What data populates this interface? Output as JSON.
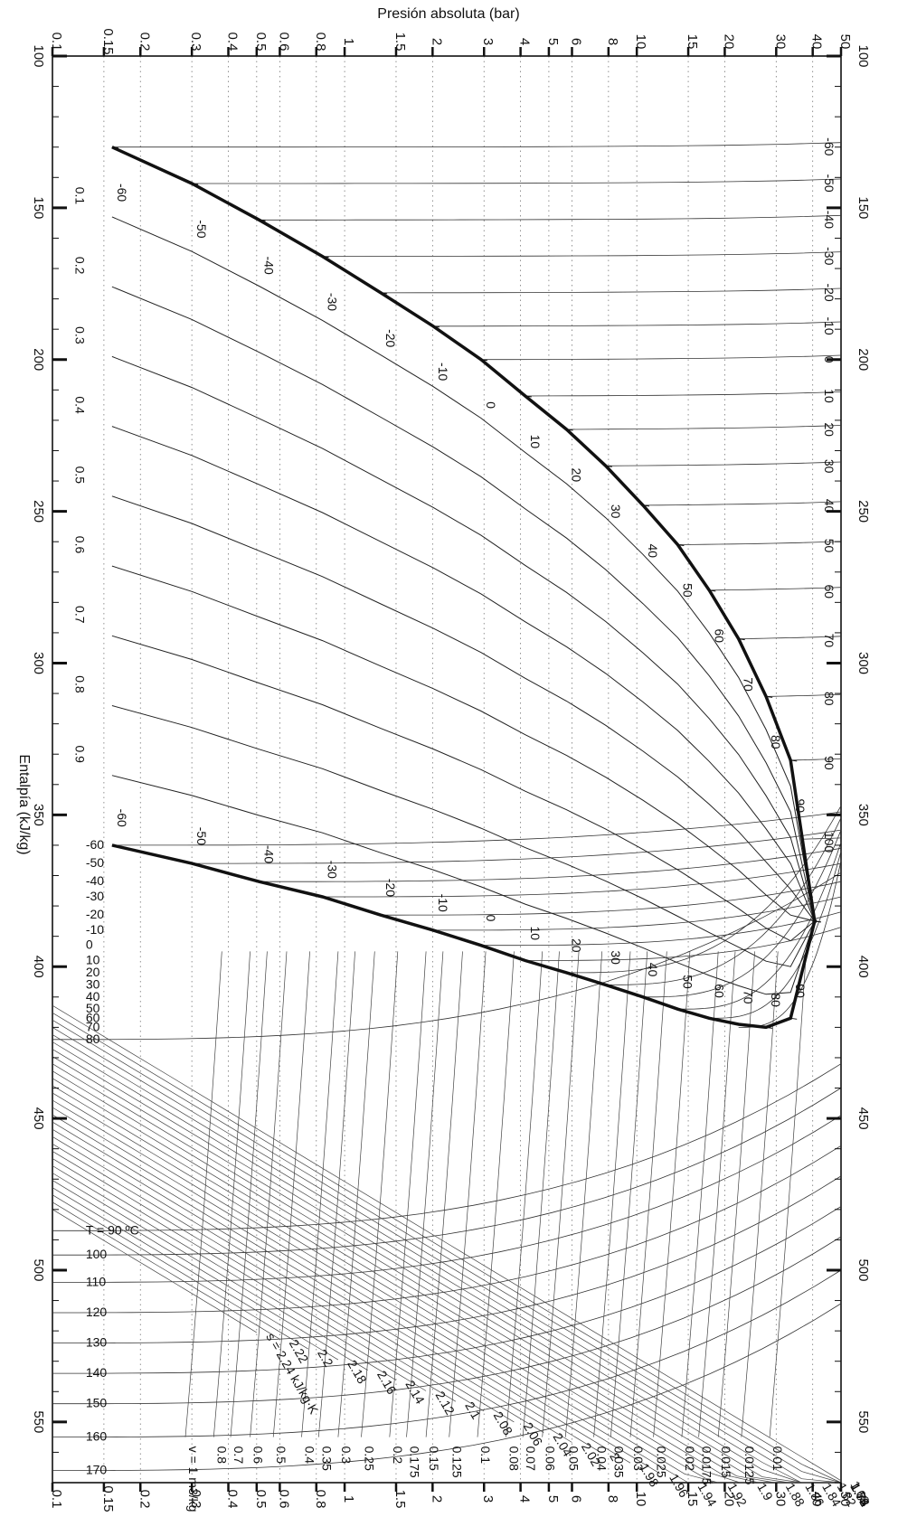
{
  "chart_data": {
    "type": "line",
    "title": "",
    "top_axis_label": "Presión absoluta (bar)",
    "left_axis_label": "Entalpía (kJ/kg)",
    "x_axis": {
      "quantity": "Presión absoluta",
      "unit": "bar",
      "scale": "log",
      "range": [
        0.1,
        50
      ],
      "ticks": [
        {
          "value": 0.1,
          "label": "0.1"
        },
        {
          "value": 0.15,
          "label": "0.15"
        },
        {
          "value": 0.2,
          "label": "0.2"
        },
        {
          "value": 0.3,
          "label": "0.3"
        },
        {
          "value": 0.4,
          "label": "0.4"
        },
        {
          "value": 0.5,
          "label": "0.5"
        },
        {
          "value": 0.6,
          "label": "0.6"
        },
        {
          "value": 0.8,
          "label": "0.8"
        },
        {
          "value": 1,
          "label": "1"
        },
        {
          "value": 1.5,
          "label": "1.5"
        },
        {
          "value": 2,
          "label": "2"
        },
        {
          "value": 3,
          "label": "3"
        },
        {
          "value": 4,
          "label": "4"
        },
        {
          "value": 5,
          "label": "5"
        },
        {
          "value": 6,
          "label": "6"
        },
        {
          "value": 8,
          "label": "8"
        },
        {
          "value": 10,
          "label": "10"
        },
        {
          "value": 15,
          "label": "15"
        },
        {
          "value": 20,
          "label": "20"
        },
        {
          "value": 30,
          "label": "30"
        },
        {
          "value": 40,
          "label": "40"
        },
        {
          "value": 50,
          "label": "50"
        }
      ]
    },
    "y_axis": {
      "quantity": "Entalpía",
      "unit": "kJ/kg",
      "scale": "linear",
      "range": [
        100,
        570
      ],
      "ticks": [
        {
          "value": 100,
          "label": "100"
        },
        {
          "value": 150,
          "label": "150"
        },
        {
          "value": 200,
          "label": "200"
        },
        {
          "value": 250,
          "label": "250"
        },
        {
          "value": 300,
          "label": "300"
        },
        {
          "value": 350,
          "label": "350"
        },
        {
          "value": 400,
          "label": "400"
        },
        {
          "value": 450,
          "label": "450"
        },
        {
          "value": 500,
          "label": "500"
        },
        {
          "value": 550,
          "label": "550"
        }
      ]
    },
    "critical_point": {
      "p": 40.6,
      "h": 385
    },
    "saturation": {
      "liquid": [
        {
          "T": -60,
          "p": 0.16,
          "h": 130
        },
        {
          "T": -50,
          "p": 0.3,
          "h": 142
        },
        {
          "T": -40,
          "p": 0.51,
          "h": 154
        },
        {
          "T": -30,
          "p": 0.84,
          "h": 166
        },
        {
          "T": -20,
          "p": 1.33,
          "h": 178
        },
        {
          "T": -10,
          "p": 2.01,
          "h": 189
        },
        {
          "T": 0,
          "p": 2.93,
          "h": 200
        },
        {
          "T": 10,
          "p": 4.15,
          "h": 212
        },
        {
          "T": 20,
          "p": 5.75,
          "h": 223
        },
        {
          "T": 30,
          "p": 7.83,
          "h": 235
        },
        {
          "T": 40,
          "p": 10.5,
          "h": 248
        },
        {
          "T": 50,
          "p": 13.8,
          "h": 261
        },
        {
          "T": 60,
          "p": 17.7,
          "h": 276
        },
        {
          "T": 70,
          "p": 22.3,
          "h": 292
        },
        {
          "T": 80,
          "p": 27.7,
          "h": 311
        },
        {
          "T": 90,
          "p": 33.6,
          "h": 332
        },
        {
          "T": 96.1,
          "p": 40.6,
          "h": 385
        }
      ],
      "vapor": [
        {
          "T": -60,
          "p": 0.16,
          "h": 360
        },
        {
          "T": -50,
          "p": 0.3,
          "h": 366
        },
        {
          "T": -40,
          "p": 0.51,
          "h": 372
        },
        {
          "T": -30,
          "p": 0.84,
          "h": 377
        },
        {
          "T": -20,
          "p": 1.33,
          "h": 383
        },
        {
          "T": -10,
          "p": 2.01,
          "h": 388
        },
        {
          "T": 0,
          "p": 2.93,
          "h": 393
        },
        {
          "T": 10,
          "p": 4.15,
          "h": 398
        },
        {
          "T": 20,
          "p": 5.75,
          "h": 402
        },
        {
          "T": 30,
          "p": 7.83,
          "h": 406
        },
        {
          "T": 40,
          "p": 10.5,
          "h": 410
        },
        {
          "T": 50,
          "p": 13.8,
          "h": 414
        },
        {
          "T": 60,
          "p": 17.7,
          "h": 417
        },
        {
          "T": 70,
          "p": 22.3,
          "h": 419
        },
        {
          "T": 80,
          "p": 27.7,
          "h": 420
        },
        {
          "T": 90,
          "p": 33.6,
          "h": 417
        },
        {
          "T": 96.1,
          "p": 40.6,
          "h": 385
        }
      ]
    },
    "quality_lines": [
      "0.1",
      "0.2",
      "0.3",
      "0.4",
      "0.5",
      "0.6",
      "0.7",
      "0.8",
      "0.9"
    ],
    "liquid_side_temperature_labels": [
      {
        "T": -60,
        "label": "-60"
      },
      {
        "T": -50,
        "label": "-50"
      },
      {
        "T": -40,
        "label": "-40"
      },
      {
        "T": -30,
        "label": "-30"
      },
      {
        "T": -20,
        "label": "-20"
      },
      {
        "T": -10,
        "label": "-10"
      },
      {
        "T": 0,
        "label": "0"
      },
      {
        "T": 10,
        "label": "10"
      },
      {
        "T": 20,
        "label": "20"
      },
      {
        "T": 30,
        "label": "30"
      },
      {
        "T": 40,
        "label": "40"
      },
      {
        "T": 50,
        "label": "50"
      },
      {
        "T": 60,
        "label": "60"
      },
      {
        "T": 70,
        "label": "70"
      },
      {
        "T": 80,
        "label": "80"
      },
      {
        "T": 90,
        "label": "90"
      }
    ],
    "vapor_side_temperature_labels": [
      {
        "T": -60,
        "label": "-60"
      },
      {
        "T": -50,
        "label": "-50"
      },
      {
        "T": -40,
        "label": "-40"
      },
      {
        "T": -30,
        "label": "-30"
      },
      {
        "T": -20,
        "label": "-20"
      },
      {
        "T": -10,
        "label": "-10"
      },
      {
        "T": 0,
        "label": "0"
      },
      {
        "T": 10,
        "label": "10"
      },
      {
        "T": 20,
        "label": "20"
      },
      {
        "T": 30,
        "label": "30"
      },
      {
        "T": 40,
        "label": "40"
      },
      {
        "T": 50,
        "label": "50"
      },
      {
        "T": 60,
        "label": "60"
      },
      {
        "T": 70,
        "label": "70"
      },
      {
        "T": 80,
        "label": "80"
      },
      {
        "T": 90,
        "label": "90"
      }
    ],
    "compressed_liquid_isotherms": [
      {
        "T": -60,
        "label": "-60",
        "h": 130
      },
      {
        "T": -50,
        "label": "-50",
        "h": 142
      },
      {
        "T": -40,
        "label": "-40",
        "h": 154
      },
      {
        "T": -30,
        "label": "-30",
        "h": 166
      },
      {
        "T": -20,
        "label": "-20",
        "h": 178
      },
      {
        "T": -10,
        "label": "-10",
        "h": 189
      },
      {
        "T": 0,
        "label": "0",
        "h": 200
      },
      {
        "T": 10,
        "label": "10",
        "h": 212
      },
      {
        "T": 20,
        "label": "20",
        "h": 223
      },
      {
        "T": 30,
        "label": "30",
        "h": 235
      },
      {
        "T": 40,
        "label": "40",
        "h": 248
      },
      {
        "T": 50,
        "label": "50",
        "h": 261
      },
      {
        "T": 60,
        "label": "60",
        "h": 276
      },
      {
        "T": 70,
        "label": "70",
        "h": 292
      },
      {
        "T": 80,
        "label": "80",
        "h": 311
      },
      {
        "T": 90,
        "label": "90",
        "h": 332
      },
      {
        "T": 100,
        "label": "100",
        "h": 358
      }
    ],
    "superheated_isotherms": [
      {
        "T": -60,
        "label": "-60",
        "h": 360
      },
      {
        "T": -50,
        "label": "-50",
        "h": 366
      },
      {
        "T": -40,
        "label": "-40",
        "h": 372
      },
      {
        "T": -30,
        "label": "-30",
        "h": 377
      },
      {
        "T": -20,
        "label": "-20",
        "h": 383
      },
      {
        "T": -10,
        "label": "-10",
        "h": 388
      },
      {
        "T": 0,
        "label": "0",
        "h": 393
      },
      {
        "T": 10,
        "label": "10",
        "h": 398
      },
      {
        "T": 20,
        "label": "20",
        "h": 402
      },
      {
        "T": 30,
        "label": "30",
        "h": 406
      },
      {
        "T": 40,
        "label": "40",
        "h": 410
      },
      {
        "T": 50,
        "label": "50",
        "h": 414
      },
      {
        "T": 60,
        "label": "60",
        "h": 417
      },
      {
        "T": 70,
        "label": "70",
        "h": 420
      },
      {
        "T": 80,
        "label": "80",
        "h": 424
      },
      {
        "T": 90,
        "label": "T = 90 ºC",
        "h": 487
      },
      {
        "T": 100,
        "label": "100",
        "h": 495
      },
      {
        "T": 110,
        "label": "110",
        "h": 504
      },
      {
        "T": 120,
        "label": "120",
        "h": 514
      },
      {
        "T": 130,
        "label": "130",
        "h": 524
      },
      {
        "T": 140,
        "label": "140",
        "h": 534
      },
      {
        "T": 150,
        "label": "150",
        "h": 544
      },
      {
        "T": 160,
        "label": "160",
        "h": 555
      },
      {
        "T": 170,
        "label": "170",
        "h": 566
      }
    ],
    "entropy_lines": {
      "unit": "kJ/kg·K",
      "labels": [
        {
          "s": 2.24,
          "label": "s = 2.24 kJ/kg·K",
          "p": 0.5
        },
        {
          "s": 2.22,
          "label": "2.22",
          "p": 0.6
        },
        {
          "s": 2.2,
          "label": "2.2",
          "p": 0.75
        },
        {
          "s": 2.18,
          "label": "2.18",
          "p": 0.95
        },
        {
          "s": 2.16,
          "label": "2.16",
          "p": 1.2
        },
        {
          "s": 2.14,
          "label": "2.14",
          "p": 1.5
        },
        {
          "s": 2.12,
          "label": "2.12",
          "p": 1.9
        },
        {
          "s": 2.1,
          "label": "2.1",
          "p": 2.4
        },
        {
          "s": 2.08,
          "label": "2.08",
          "p": 3
        },
        {
          "s": 2.06,
          "label": "2.06",
          "p": 3.8
        },
        {
          "s": 2.04,
          "label": "2.04",
          "p": 4.8
        },
        {
          "s": 2.02,
          "label": "2.02",
          "p": 6
        },
        {
          "s": 2,
          "label": "2",
          "p": 7.5
        },
        {
          "s": 1.98,
          "label": "1.98",
          "p": 9.5
        },
        {
          "s": 1.96,
          "label": "1.96",
          "p": 12
        },
        {
          "s": 1.94,
          "label": "1.94",
          "p": 15
        },
        {
          "s": 1.92,
          "label": "1.92",
          "p": 19
        },
        {
          "s": 1.9,
          "label": "1.9",
          "p": 24
        },
        {
          "s": 1.88,
          "label": "1.88",
          "p": 30
        },
        {
          "s": 1.86,
          "label": "1.86",
          "p": 35
        },
        {
          "s": 1.84,
          "label": "1.84",
          "p": 40
        },
        {
          "s": 1.82,
          "label": "1.82",
          "p": 45
        },
        {
          "s": 1.8,
          "label": "1.8",
          "p": 50
        },
        {
          "s": 1.78,
          "label": "1.78",
          "p": 50
        },
        {
          "s": 1.76,
          "label": "1.76",
          "p": 50
        },
        {
          "s": 1.74,
          "label": "1.74",
          "p": 50
        },
        {
          "s": 1.72,
          "label": "1.72",
          "p": 50
        },
        {
          "s": 1.7,
          "label": "1.7",
          "p": 50
        },
        {
          "s": 1.68,
          "label": "1.68",
          "p": 50
        }
      ]
    },
    "specific_volume_lines": {
      "unit": "m3/kg",
      "labels": [
        {
          "v": 1,
          "label": "v = 1 m3/kg"
        },
        {
          "v": 0.8,
          "label": "0.8"
        },
        {
          "v": 0.7,
          "label": "0.7"
        },
        {
          "v": 0.6,
          "label": "0.6"
        },
        {
          "v": 0.5,
          "label": "0.5"
        },
        {
          "v": 0.4,
          "label": "0.4"
        },
        {
          "v": 0.35,
          "label": "0.35"
        },
        {
          "v": 0.3,
          "label": "0.3"
        },
        {
          "v": 0.25,
          "label": "0.25"
        },
        {
          "v": 0.2,
          "label": "0.2"
        },
        {
          "v": 0.175,
          "label": "0.175"
        },
        {
          "v": 0.15,
          "label": "0.15"
        },
        {
          "v": 0.125,
          "label": "0.125"
        },
        {
          "v": 0.1,
          "label": "0.1"
        },
        {
          "v": 0.08,
          "label": "0.08"
        },
        {
          "v": 0.07,
          "label": "0.07"
        },
        {
          "v": 0.06,
          "label": "0.06"
        },
        {
          "v": 0.05,
          "label": "0.05"
        },
        {
          "v": 0.04,
          "label": "0.04"
        },
        {
          "v": 0.035,
          "label": "0.035"
        },
        {
          "v": 0.03,
          "label": "0.03"
        },
        {
          "v": 0.025,
          "label": "0.025"
        },
        {
          "v": 0.02,
          "label": "0.02"
        },
        {
          "v": 0.0175,
          "label": "0.0175"
        },
        {
          "v": 0.015,
          "label": "0.015"
        },
        {
          "v": 0.0125,
          "label": "0.0125"
        },
        {
          "v": 0.01,
          "label": "0.01"
        }
      ]
    },
    "grid": true,
    "legend": "none"
  }
}
